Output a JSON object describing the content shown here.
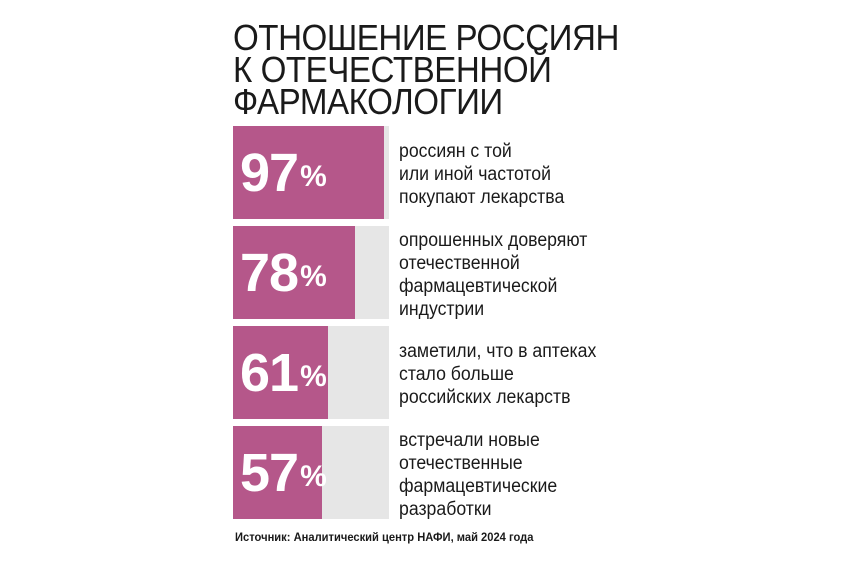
{
  "chart_data": {
    "type": "bar",
    "title": "ОТНОШЕНИЕ РОССИЯН К ОТЕЧЕСТВЕННОЙ ФАРМАКОЛОГИИ",
    "title_lines": [
      "ОТНОШЕНИЕ РОССИЯН",
      "К ОТЕЧЕСТВЕННОЙ",
      "ФАРМАКОЛОГИИ"
    ],
    "unit": "%",
    "ylim": [
      0,
      100
    ],
    "values": [
      97,
      78,
      61,
      57
    ],
    "categories": [
      "россиян с той или иной частотой покупают лекарства",
      "опрошенных доверяют отечественной фармацевтической индустрии",
      "заметили, что в аптеках стало больше российских лекарств",
      "встречали новые отечественные фармацевтические разработки"
    ],
    "category_lines": [
      [
        "россиян с той",
        "или иной частотой",
        "покупают лекарства"
      ],
      [
        "опрошенных доверяют",
        "отечественной",
        "фармацевтической",
        "индустрии"
      ],
      [
        "заметили, что в аптеках",
        "стало больше",
        "российских лекарств"
      ],
      [
        "встречали новые",
        "отечественные",
        "фармацевтические",
        "разработки"
      ]
    ],
    "source": "Источник: Аналитический центр НАФИ, май 2024 года",
    "colors": {
      "bar": "#b5578a",
      "track": "#e6e6e6",
      "value_text": "#ffffff"
    }
  }
}
